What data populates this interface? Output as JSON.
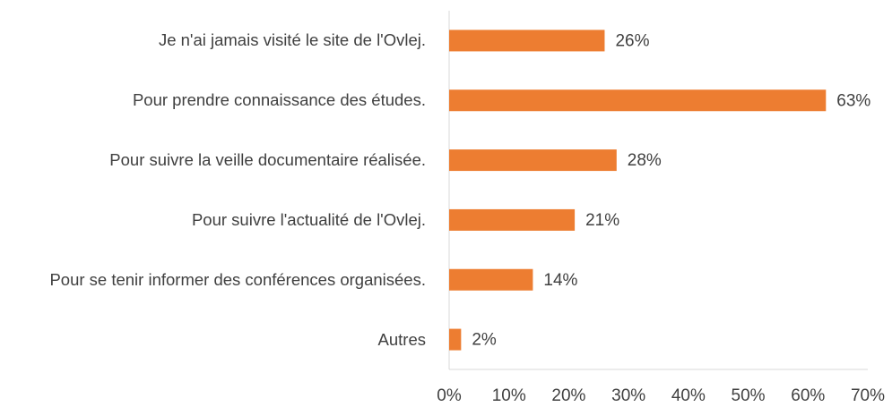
{
  "chart_data": {
    "type": "barh",
    "categories": [
      "Je n'ai jamais visité le site de l'Ovlej.",
      "Pour prendre connaissance des études.",
      "Pour suivre la veille documentaire réalisée.",
      "Pour suivre l'actualité de l'Ovlej.",
      "Pour se tenir informer des conférences organisées.",
      "Autres"
    ],
    "values": [
      26,
      63,
      28,
      21,
      14,
      2
    ],
    "value_labels": [
      "26%",
      "63%",
      "28%",
      "21%",
      "14%",
      "2%"
    ],
    "color": "#ed7d31",
    "xlim": [
      0,
      70
    ],
    "xticks": [
      {
        "value": 0,
        "label": "0%"
      },
      {
        "value": 10,
        "label": "10%"
      },
      {
        "value": 20,
        "label": "20%"
      },
      {
        "value": 30,
        "label": "30%"
      },
      {
        "value": 40,
        "label": "40%"
      },
      {
        "value": 50,
        "label": "50%"
      },
      {
        "value": 60,
        "label": "60%"
      },
      {
        "value": 70,
        "label": "70%"
      }
    ],
    "grid": false
  }
}
